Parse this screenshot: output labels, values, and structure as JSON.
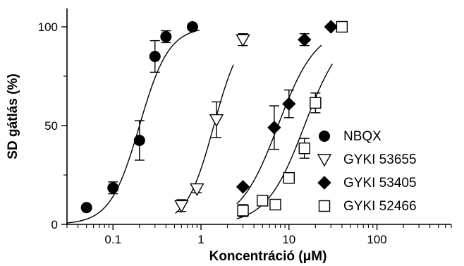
{
  "chart_data": {
    "type": "scatter",
    "title": "",
    "xlabel": "Koncentráció (μM)",
    "ylabel": "SD gátlás (%)",
    "xscale": "log",
    "xlim": [
      0.03,
      700
    ],
    "ylim": [
      0,
      100
    ],
    "x_ticks": [
      {
        "value": 0.1,
        "label": "0.1"
      },
      {
        "value": 1,
        "label": "1"
      },
      {
        "value": 10,
        "label": "10"
      },
      {
        "value": 100,
        "label": "100"
      }
    ],
    "y_ticks": [
      {
        "value": 0,
        "label": "0"
      },
      {
        "value": 50,
        "label": "50"
      },
      {
        "value": 100,
        "label": "100"
      }
    ],
    "legend_position": "right",
    "series": [
      {
        "name": "NBQX",
        "marker": "filled-circle",
        "fit": {
          "ec50": 0.2,
          "hill": 2.6
        },
        "points": [
          {
            "x": 0.05,
            "y": 8.5
          },
          {
            "x": 0.1,
            "y": 18.5,
            "err": 3
          },
          {
            "x": 0.2,
            "y": 42.5,
            "err": 10
          },
          {
            "x": 0.3,
            "y": 85,
            "err": 8
          },
          {
            "x": 0.4,
            "y": 95,
            "err": 3
          },
          {
            "x": 0.8,
            "y": 100
          }
        ]
      },
      {
        "name": "GYKI 53655",
        "marker": "open-triangle-down",
        "fit": {
          "ec50": 1.4,
          "hill": 2.8
        },
        "points": [
          {
            "x": 0.6,
            "y": 9.5,
            "err": 3
          },
          {
            "x": 0.9,
            "y": 18,
            "err": 2
          },
          {
            "x": 1.5,
            "y": 53,
            "err": 9
          },
          {
            "x": 3,
            "y": 93.5,
            "err": 3
          }
        ]
      },
      {
        "name": "GYKI 53405",
        "marker": "filled-diamond",
        "fit": {
          "ec50": 7.5,
          "hill": 2.0
        },
        "points": [
          {
            "x": 3,
            "y": 19
          },
          {
            "x": 6.8,
            "y": 49,
            "err": 11
          },
          {
            "x": 10,
            "y": 61,
            "err": 7
          },
          {
            "x": 15,
            "y": 93.5,
            "err": 3
          },
          {
            "x": 30,
            "y": 100
          }
        ]
      },
      {
        "name": "GYKI 52466",
        "marker": "open-square",
        "fit": {
          "ec50": 15,
          "hill": 2.0
        },
        "points": [
          {
            "x": 3,
            "y": 7,
            "err": 3
          },
          {
            "x": 5,
            "y": 12
          },
          {
            "x": 7,
            "y": 10
          },
          {
            "x": 10,
            "y": 23.5,
            "err": 2
          },
          {
            "x": 15,
            "y": 38.5,
            "err": 5
          },
          {
            "x": 20,
            "y": 61.5,
            "err": 5
          },
          {
            "x": 40,
            "y": 100
          }
        ]
      }
    ]
  }
}
